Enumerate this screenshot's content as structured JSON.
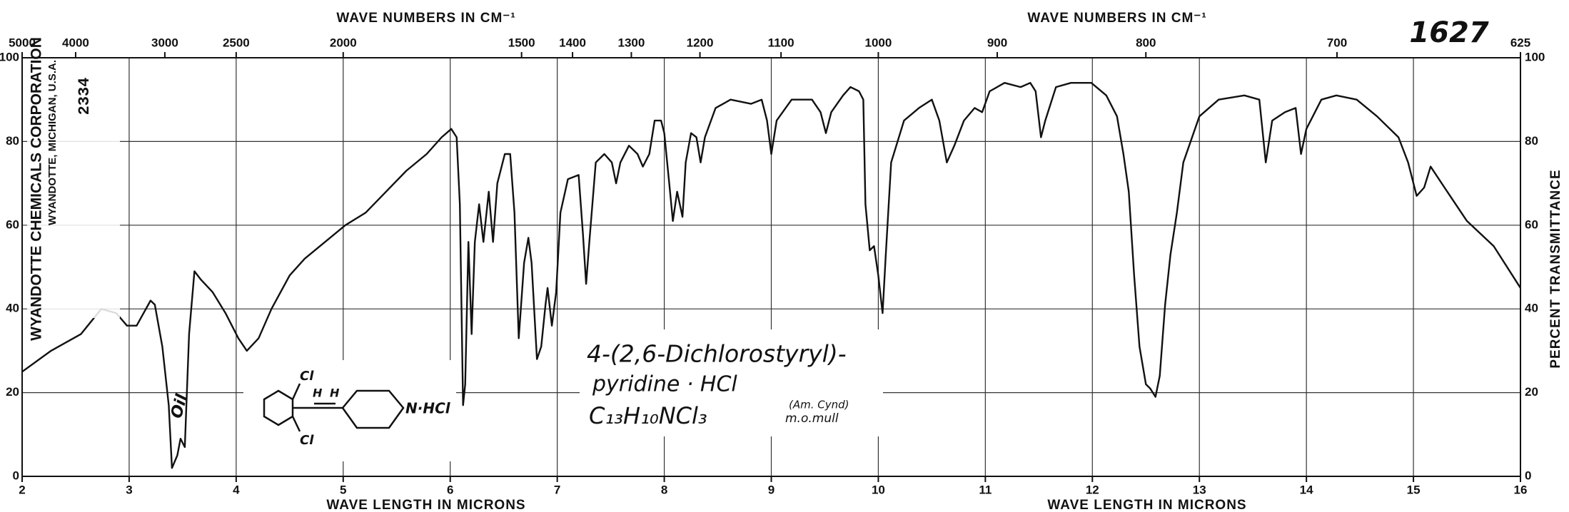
{
  "chart_data": {
    "type": "line",
    "x2label": "WAVE NUMBERS IN CM⁻¹",
    "xlabel": "WAVE LENGTH IN MICRONS",
    "ylabel": "PERCENT TRANSMITTANCE",
    "xlim": [
      2,
      16
    ],
    "xticks": [
      2,
      3,
      4,
      5,
      6,
      7,
      8,
      9,
      10,
      11,
      12,
      13,
      14,
      15,
      16
    ],
    "x2lim": [
      5000,
      625
    ],
    "x2scale": "reciprocal",
    "x2ticks": [
      5000,
      4000,
      3000,
      2500,
      2000,
      1500,
      1400,
      1300,
      1200,
      1100,
      1000,
      900,
      800,
      700,
      625
    ],
    "ylim": [
      0,
      100
    ],
    "yticks": [
      0,
      20,
      40,
      60,
      80,
      100
    ],
    "right_axis": true,
    "grid": true,
    "color": "#111111",
    "x": [
      2.0,
      2.27,
      2.55,
      2.74,
      2.88,
      2.98,
      3.07,
      3.2,
      3.24,
      3.31,
      3.37,
      3.4,
      3.45,
      3.48,
      3.52,
      3.56,
      3.61,
      3.67,
      3.78,
      3.9,
      4.02,
      4.1,
      4.21,
      4.33,
      4.5,
      4.64,
      4.83,
      5.02,
      5.21,
      5.4,
      5.59,
      5.78,
      5.92,
      6.01,
      6.06,
      6.09,
      6.12,
      6.14,
      6.17,
      6.2,
      6.23,
      6.27,
      6.31,
      6.36,
      6.4,
      6.44,
      6.51,
      6.56,
      6.6,
      6.64,
      6.69,
      6.73,
      6.76,
      6.81,
      6.85,
      6.89,
      6.91,
      6.95,
      6.99,
      7.03,
      7.1,
      7.2,
      7.24,
      7.27,
      7.3,
      7.36,
      7.44,
      7.51,
      7.55,
      7.59,
      7.67,
      7.75,
      7.8,
      7.86,
      7.91,
      7.97,
      8.0,
      8.05,
      8.08,
      8.12,
      8.17,
      8.2,
      8.25,
      8.3,
      8.34,
      8.38,
      8.48,
      8.62,
      8.81,
      8.91,
      8.96,
      9.0,
      9.05,
      9.19,
      9.38,
      9.46,
      9.51,
      9.56,
      9.67,
      9.74,
      9.82,
      9.86,
      9.88,
      9.92,
      9.96,
      10.0,
      10.04,
      10.07,
      10.12,
      10.24,
      10.38,
      10.5,
      10.57,
      10.64,
      10.71,
      10.8,
      10.9,
      10.97,
      11.04,
      11.18,
      11.33,
      11.42,
      11.47,
      11.52,
      11.56,
      11.66,
      11.8,
      11.99,
      12.13,
      12.23,
      12.29,
      12.34,
      12.39,
      12.44,
      12.5,
      12.54,
      12.59,
      12.63,
      12.68,
      12.73,
      12.79,
      12.85,
      13.0,
      13.18,
      13.42,
      13.56,
      13.62,
      13.68,
      13.8,
      13.9,
      13.95,
      14.0,
      14.14,
      14.28,
      14.47,
      14.66,
      14.86,
      14.95,
      15.03,
      15.1,
      15.16,
      15.29,
      15.5,
      15.75,
      16.0
    ],
    "values": [
      25,
      30,
      34,
      40,
      39,
      36,
      36,
      42,
      41,
      31,
      17,
      2,
      5,
      9,
      7,
      34,
      49,
      47,
      44,
      39,
      33,
      30,
      33,
      40,
      48,
      52,
      56,
      60,
      63,
      68,
      73,
      77,
      81,
      83,
      81,
      65,
      17,
      22,
      56,
      34,
      56,
      65,
      56,
      68,
      56,
      70,
      77,
      77,
      63,
      33,
      51,
      57,
      51,
      28,
      31,
      41,
      45,
      36,
      44,
      63,
      71,
      72,
      58,
      46,
      56,
      75,
      77,
      75,
      70,
      75,
      79,
      77,
      74,
      77,
      85,
      85,
      82,
      69,
      61,
      68,
      62,
      75,
      82,
      81,
      75,
      81,
      88,
      90,
      89,
      90,
      85,
      77,
      85,
      90,
      90,
      87,
      82,
      87,
      91,
      93,
      92,
      90,
      65,
      54,
      55,
      48,
      39,
      53,
      75,
      85,
      88,
      90,
      85,
      75,
      79,
      85,
      88,
      87,
      92,
      94,
      93,
      94,
      92,
      81,
      85,
      93,
      94,
      94,
      91,
      86,
      77,
      68,
      48,
      31,
      22,
      21,
      19,
      24,
      41,
      53,
      63,
      75,
      86,
      90,
      91,
      90,
      75,
      85,
      87,
      88,
      77,
      83,
      90,
      91,
      90,
      86,
      81,
      75,
      67,
      69,
      74,
      69,
      61,
      55,
      45
    ],
    "annotations": {
      "company": "WYANDOTTE CHEMICALS CORPORATION",
      "location": "WYANDOTTE, MICHIGAN, U.S.A.",
      "catalog": "2334",
      "spectrum_no": "1627",
      "sample": "Oil",
      "compound": [
        "4-(2,6-Dichlorostyryl)-",
        "pyridine · HCl",
        "C₁₃H₁₀NCl₃"
      ],
      "source": [
        "(Am. Cynd)",
        "m.o.mull"
      ],
      "structure": [
        "Cl",
        "Cl",
        "H",
        "H",
        "N·HCl"
      ]
    }
  }
}
